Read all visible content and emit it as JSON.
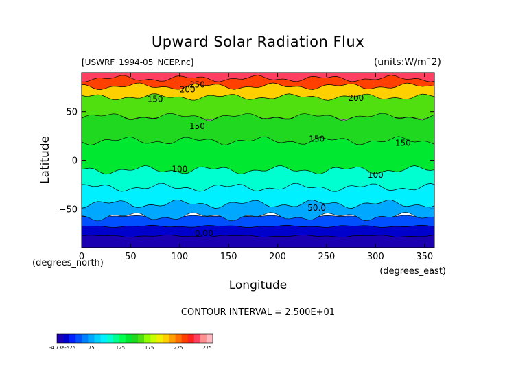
{
  "chart_data": {
    "type": "heatmap",
    "title": "Upward Solar Radiation Flux",
    "source_label": "[USWRF_1994-05_NCEP.nc]",
    "units_label": "(units:W/m^-2)",
    "xlabel": "Longitude",
    "ylabel": "Latitude",
    "x_unit_label": "(degrees_east)",
    "y_unit_label": "(degrees_north)",
    "xlim": [
      0,
      360
    ],
    "ylim": [
      -90,
      90
    ],
    "x_ticks": [
      0,
      50,
      100,
      150,
      200,
      250,
      300,
      350
    ],
    "y_ticks": [
      -50,
      0,
      50
    ],
    "contour_interval_text": "CONTOUR INTERVAL = 2.500E+01",
    "contour_labels": [
      {
        "text": "250",
        "lon": 118,
        "lat": 75
      },
      {
        "text": "200",
        "lon": 108,
        "lat": 70
      },
      {
        "text": "150",
        "lon": 75,
        "lat": 60
      },
      {
        "text": "200",
        "lon": 280,
        "lat": 61
      },
      {
        "text": "150",
        "lon": 118,
        "lat": 32
      },
      {
        "text": "150",
        "lon": 240,
        "lat": 19
      },
      {
        "text": "150",
        "lon": 328,
        "lat": 15
      },
      {
        "text": "100",
        "lon": 100,
        "lat": -12
      },
      {
        "text": "100",
        "lon": 300,
        "lat": -18
      },
      {
        "text": "50.0",
        "lon": 240,
        "lat": -52
      },
      {
        "text": "0.00",
        "lon": 125,
        "lat": -78
      }
    ],
    "lat_bands": [
      {
        "lat_min": -90,
        "lat_max": -78,
        "value": 0
      },
      {
        "lat_min": -78,
        "lat_max": -68,
        "value": 15
      },
      {
        "lat_min": -68,
        "lat_max": -58,
        "value": 40
      },
      {
        "lat_min": -58,
        "lat_max": -45,
        "value": 62
      },
      {
        "lat_min": -45,
        "lat_max": -28,
        "value": 88
      },
      {
        "lat_min": -28,
        "lat_max": -10,
        "value": 105
      },
      {
        "lat_min": -10,
        "lat_max": 20,
        "value": 135
      },
      {
        "lat_min": 20,
        "lat_max": 45,
        "value": 150
      },
      {
        "lat_min": 45,
        "lat_max": 65,
        "value": 158
      },
      {
        "lat_min": 65,
        "lat_max": 76,
        "value": 205
      },
      {
        "lat_min": 76,
        "lat_max": 84,
        "value": 250
      },
      {
        "lat_min": 84,
        "lat_max": 90,
        "value": 275
      }
    ],
    "colorbar": {
      "labels": [
        "-4.73e-525",
        "75",
        "125",
        "175",
        "225",
        "275"
      ],
      "colors": [
        "#1a00b0",
        "#0000cc",
        "#0020ff",
        "#0050ff",
        "#0080ff",
        "#00a8ff",
        "#00d0ff",
        "#00f0ff",
        "#00ffd0",
        "#00ff90",
        "#00ff50",
        "#00e830",
        "#20d820",
        "#50e010",
        "#90ff00",
        "#c8ff00",
        "#f0f000",
        "#ffd000",
        "#ffa000",
        "#ff7000",
        "#ff4000",
        "#ff2020",
        "#ff4060",
        "#ff9090",
        "#ffb8c0"
      ]
    }
  }
}
